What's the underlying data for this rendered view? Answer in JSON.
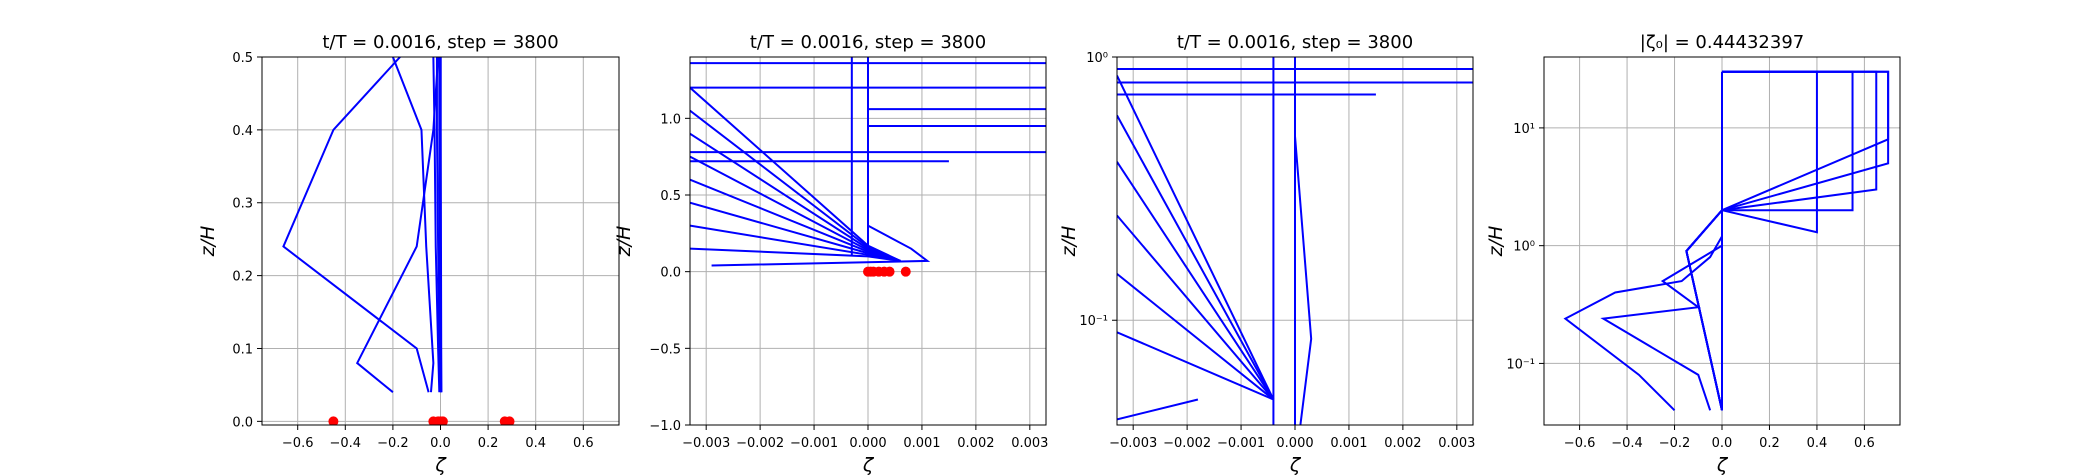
{
  "chart_data": [
    {
      "type": "line",
      "title": "t/T = 0.0016, step = 3800",
      "x_label": "ζ",
      "y_label": "z/H",
      "y_scale": "linear",
      "grid": true,
      "xlim": [
        -0.75,
        0.75
      ],
      "ylim": [
        -0.005,
        0.5
      ],
      "xticks": [
        {
          "value": -0.6,
          "label": "−0.6"
        },
        {
          "value": -0.4,
          "label": "−0.4"
        },
        {
          "value": -0.2,
          "label": "−0.2"
        },
        {
          "value": 0,
          "label": "0.0"
        },
        0.2,
        0.4,
        0.6
      ],
      "yticks": [
        {
          "value": 0,
          "label": "0.0"
        },
        0.1,
        0.2,
        0.3,
        0.4,
        0.5
      ],
      "series": [
        {
          "color": "#0000ff",
          "x": [
            -0.2,
            -0.35,
            -0.1,
            -0.03,
            -0.01
          ],
          "values": [
            0.04,
            0.08,
            0.24,
            0.4,
            0.5
          ]
        },
        {
          "color": "#0000ff",
          "x": [
            -0.05,
            -0.1,
            -0.66,
            -0.45,
            -0.17
          ],
          "values": [
            0.04,
            0.1,
            0.24,
            0.4,
            0.5
          ]
        },
        {
          "color": "#0000ff",
          "x": [
            -0.04,
            -0.03,
            -0.06,
            -0.08,
            -0.2
          ],
          "values": [
            0.04,
            0.08,
            0.24,
            0.4,
            0.5
          ]
        },
        {
          "color": "#0000ff",
          "x": [
            -0.005,
            -0.01,
            -0.02,
            -0.025,
            -0.03
          ],
          "values": [
            0.04,
            0.1,
            0.24,
            0.4,
            0.5
          ]
        },
        {
          "color": "#0000ff",
          "x": [
            0,
            -0.005,
            -0.01,
            -0.015,
            -0.015
          ],
          "values": [
            0.04,
            0.1,
            0.24,
            0.4,
            0.5
          ]
        },
        {
          "color": "#0000ff",
          "x": [
            0.002,
            0,
            -0.003,
            -0.005,
            -0.005
          ],
          "values": [
            0.04,
            0.1,
            0.24,
            0.4,
            0.5
          ]
        },
        {
          "color": "#0000ff",
          "x": [
            0.004,
            0.003,
            0.002,
            0.001,
            0.001
          ],
          "values": [
            0.04,
            0.1,
            0.24,
            0.4,
            0.5
          ]
        },
        {
          "type": "scatter",
          "color": "#ff0000",
          "x": [
            -0.45,
            -0.03,
            -0.01,
            0,
            0.01,
            0.27,
            0.29
          ],
          "values": [
            0,
            0,
            0,
            0,
            0,
            0,
            0
          ]
        }
      ]
    },
    {
      "type": "line",
      "title": "t/T = 0.0016, step = 3800",
      "x_label": "ζ",
      "y_label": "z/H",
      "y_scale": "linear",
      "grid": true,
      "xlim": [
        -0.0033,
        0.0033
      ],
      "ylim": [
        -1,
        1.4
      ],
      "xticks": [
        {
          "value": -0.003,
          "label": "−0.003"
        },
        {
          "value": -0.002,
          "label": "−0.002"
        },
        {
          "value": -0.001,
          "label": "−0.001"
        },
        {
          "value": 0,
          "label": "0.000"
        },
        0.001,
        0.002,
        0.003
      ],
      "yticks": [
        {
          "value": -1,
          "label": "−1.0"
        },
        {
          "value": -0.5,
          "label": "−0.5"
        },
        {
          "value": 0,
          "label": "0.0"
        },
        0.5,
        {
          "value": 1,
          "label": "1.0"
        }
      ],
      "series": [
        {
          "color": "#0000ff",
          "x": [
            0.0006,
            0,
            -0.0033
          ],
          "values": [
            0.07,
            0.1,
            0.15
          ]
        },
        {
          "color": "#0000ff",
          "x": [
            0.0006,
            0,
            -0.0033
          ],
          "values": [
            0.07,
            0.11,
            0.3
          ]
        },
        {
          "color": "#0000ff",
          "x": [
            0.0006,
            0,
            -0.0033
          ],
          "values": [
            0.07,
            0.12,
            0.45
          ]
        },
        {
          "color": "#0000ff",
          "x": [
            0.0006,
            0,
            -0.0033
          ],
          "values": [
            0.07,
            0.13,
            0.6
          ]
        },
        {
          "color": "#0000ff",
          "x": [
            0.0006,
            0,
            -0.0033
          ],
          "values": [
            0.07,
            0.14,
            0.75
          ]
        },
        {
          "color": "#0000ff",
          "x": [
            0.0006,
            0,
            -0.0033
          ],
          "values": [
            0.07,
            0.15,
            0.9
          ]
        },
        {
          "color": "#0000ff",
          "x": [
            0.0006,
            0,
            -0.0033
          ],
          "values": [
            0.07,
            0.16,
            1.05
          ]
        },
        {
          "color": "#0000ff",
          "x": [
            0.0006,
            0,
            -0.0033
          ],
          "values": [
            0.07,
            0.17,
            1.2
          ]
        },
        {
          "color": "#0000ff",
          "x": [
            0,
            0
          ],
          "values": [
            0.1,
            1.4
          ]
        },
        {
          "color": "#0000ff",
          "x": [
            -0.0003,
            -0.0003
          ],
          "values": [
            0.1,
            1.4
          ]
        },
        {
          "color": "#0000ff",
          "x": [
            -0.0033,
            0.0033
          ],
          "values": [
            1.36,
            1.36
          ]
        },
        {
          "color": "#0000ff",
          "x": [
            -0.0033,
            0.0033
          ],
          "values": [
            1.2,
            1.2
          ]
        },
        {
          "color": "#0000ff",
          "x": [
            0,
            0.0033
          ],
          "values": [
            1.06,
            1.06
          ]
        },
        {
          "color": "#0000ff",
          "x": [
            0,
            0.0033
          ],
          "values": [
            0.95,
            0.95
          ]
        },
        {
          "color": "#0000ff",
          "x": [
            -0.0033,
            0.0033
          ],
          "values": [
            0.78,
            0.78
          ]
        },
        {
          "color": "#0000ff",
          "x": [
            -0.0033,
            0.0015
          ],
          "values": [
            0.72,
            0.72
          ]
        },
        {
          "color": "#0000ff",
          "x": [
            -0.0029,
            0.0011,
            0.0008,
            0
          ],
          "values": [
            0.04,
            0.07,
            0.15,
            0.3
          ]
        },
        {
          "type": "scatter",
          "color": "#ff0000",
          "x": [
            0,
            5e-05,
            0.0001,
            0.0002,
            0.0003,
            0.0004,
            0.0007
          ],
          "values": [
            0,
            0,
            0,
            0,
            0,
            0,
            0
          ]
        }
      ]
    },
    {
      "type": "line",
      "title": "t/T = 0.0016, step = 3800",
      "x_label": "ζ",
      "y_label": "z/H",
      "y_scale": "log",
      "grid": true,
      "xlim": [
        -0.0033,
        0.0033
      ],
      "ylim": [
        0.04,
        1
      ],
      "xticks": [
        {
          "value": -0.003,
          "label": "−0.003"
        },
        {
          "value": -0.002,
          "label": "−0.002"
        },
        {
          "value": -0.001,
          "label": "−0.001"
        },
        {
          "value": 0,
          "label": "0.000"
        },
        0.001,
        0.002,
        0.003
      ],
      "yticks": [
        {
          "value": 0.1,
          "label": "10⁻¹"
        },
        {
          "value": 1,
          "label": "10⁰"
        }
      ],
      "series": [
        {
          "color": "#0000ff",
          "x": [
            -0.0033,
            -0.0004
          ],
          "values": [
            0.09,
            0.05
          ]
        },
        {
          "color": "#0000ff",
          "x": [
            -0.0033,
            -0.0004
          ],
          "values": [
            0.15,
            0.05
          ]
        },
        {
          "color": "#0000ff",
          "x": [
            -0.0033,
            -0.0004
          ],
          "values": [
            0.25,
            0.05
          ]
        },
        {
          "color": "#0000ff",
          "x": [
            -0.0033,
            -0.0004
          ],
          "values": [
            0.4,
            0.05
          ]
        },
        {
          "color": "#0000ff",
          "x": [
            -0.0033,
            -0.0004
          ],
          "values": [
            0.6,
            0.05
          ]
        },
        {
          "color": "#0000ff",
          "x": [
            -0.0033,
            -0.0004
          ],
          "values": [
            0.85,
            0.05
          ]
        },
        {
          "color": "#0000ff",
          "x": [
            -0.0004,
            -0.0004
          ],
          "values": [
            0.04,
            1
          ]
        },
        {
          "color": "#0000ff",
          "x": [
            0,
            0
          ],
          "values": [
            0.04,
            1
          ]
        },
        {
          "color": "#0000ff",
          "x": [
            0,
            0.0003,
            0.0001
          ],
          "values": [
            0.5,
            0.085,
            0.04
          ]
        },
        {
          "color": "#0000ff",
          "x": [
            -0.0033,
            0.0033
          ],
          "values": [
            0.9,
            0.9
          ]
        },
        {
          "color": "#0000ff",
          "x": [
            -0.0033,
            0.0033
          ],
          "values": [
            0.8,
            0.8
          ]
        },
        {
          "color": "#0000ff",
          "x": [
            -0.0033,
            0.0015
          ],
          "values": [
            0.72,
            0.72
          ]
        },
        {
          "color": "#0000ff",
          "x": [
            -0.0033,
            -0.0018
          ],
          "values": [
            0.042,
            0.05
          ]
        }
      ]
    },
    {
      "type": "line",
      "title": "|ζ₀| = 0.44432397",
      "x_label": "ζ",
      "y_label": "z/H",
      "y_scale": "log",
      "grid": true,
      "xlim": [
        -0.75,
        0.75
      ],
      "ylim": [
        0.03,
        40
      ],
      "xticks": [
        {
          "value": -0.6,
          "label": "−0.6"
        },
        {
          "value": -0.4,
          "label": "−0.4"
        },
        {
          "value": -0.2,
          "label": "−0.2"
        },
        {
          "value": 0,
          "label": "0.0"
        },
        0.2,
        0.4,
        0.6
      ],
      "yticks": [
        {
          "value": 0.1,
          "label": "10⁻¹"
        },
        {
          "value": 1,
          "label": "10⁰"
        },
        {
          "value": 10,
          "label": "10¹"
        }
      ],
      "series": [
        {
          "color": "#0000ff",
          "x": [
            -0.2,
            -0.35,
            -0.66,
            -0.45,
            -0.17,
            -0.05,
            0
          ],
          "values": [
            0.04,
            0.08,
            0.24,
            0.4,
            0.5,
            0.8,
            1.2
          ]
        },
        {
          "color": "#0000ff",
          "x": [
            -0.05,
            -0.1,
            -0.5,
            -0.1,
            -0.25,
            0
          ],
          "values": [
            0.04,
            0.08,
            0.24,
            0.3,
            0.5,
            1
          ]
        },
        {
          "color": "#0000ff",
          "x": [
            0,
            -0.15,
            0,
            0.4,
            0.4,
            0
          ],
          "values": [
            0.04,
            0.9,
            2,
            1.3,
            30,
            30
          ]
        },
        {
          "color": "#0000ff",
          "x": [
            0,
            -0.15,
            0,
            0.55,
            0.55,
            0
          ],
          "values": [
            0.04,
            0.9,
            2,
            2,
            30,
            30
          ]
        },
        {
          "color": "#0000ff",
          "x": [
            0,
            -0.15,
            0,
            0.65,
            0.65,
            0
          ],
          "values": [
            0.04,
            0.9,
            2,
            3,
            30,
            30
          ]
        },
        {
          "color": "#0000ff",
          "x": [
            0,
            -0.15,
            0,
            0.7,
            0.7,
            0
          ],
          "values": [
            0.04,
            0.9,
            2,
            5,
            30,
            30
          ]
        },
        {
          "color": "#0000ff",
          "x": [
            0,
            -0.15,
            0,
            0.7,
            0.7,
            0
          ],
          "values": [
            0.04,
            0.9,
            2,
            8,
            30,
            30
          ]
        },
        {
          "color": "#0000ff",
          "x": [
            0,
            0
          ],
          "values": [
            0.04,
            30
          ]
        }
      ]
    }
  ]
}
